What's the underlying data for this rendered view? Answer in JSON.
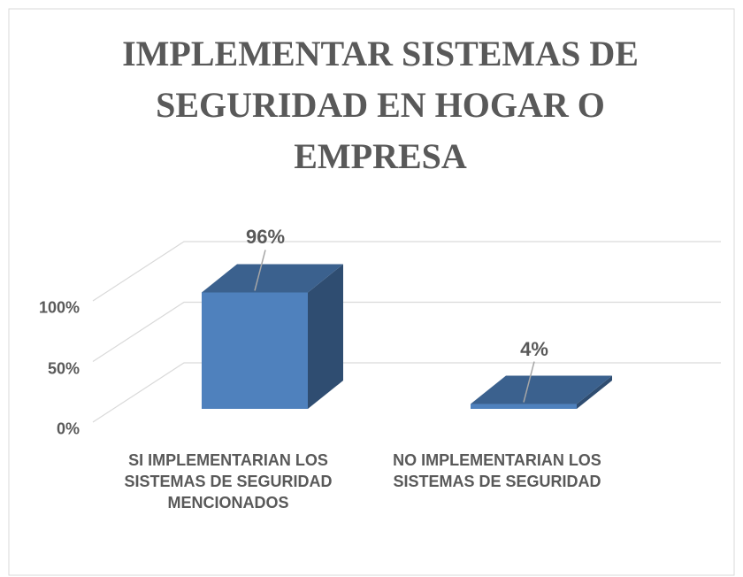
{
  "chart_data": {
    "type": "bar3d",
    "title": "IMPLEMENTAR SISTEMAS DE SEGURIDAD EN HOGAR O EMPRESA",
    "categories": [
      "SI IMPLEMENTARIAN LOS SISTEMAS DE SEGURIDAD MENCIONADOS",
      "NO IMPLEMENTARIAN LOS SISTEMAS DE SEGURIDAD"
    ],
    "values": [
      96,
      4
    ],
    "value_labels": [
      "96%",
      "4%"
    ],
    "color": "#4f81bd",
    "ylim": [
      0,
      100
    ],
    "yticks": [
      {
        "value": 0,
        "label": "0%"
      },
      {
        "value": 50,
        "label": "50%"
      },
      {
        "value": 100,
        "label": "100%"
      }
    ],
    "grid": true
  }
}
